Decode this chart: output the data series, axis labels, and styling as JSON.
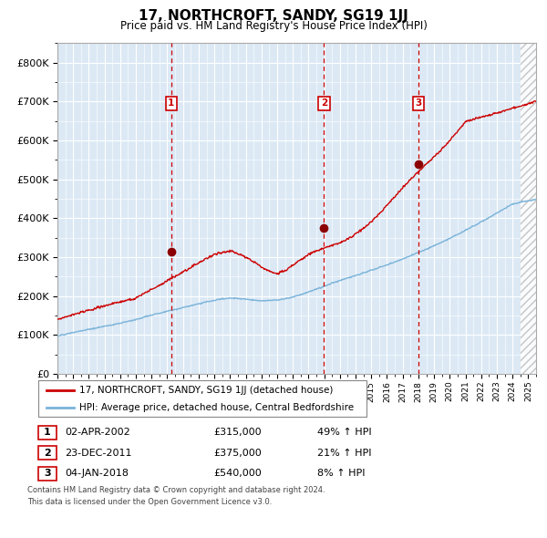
{
  "title": "17, NORTHCROFT, SANDY, SG19 1JJ",
  "subtitle": "Price paid vs. HM Land Registry's House Price Index (HPI)",
  "background_color": "#dce9f5",
  "plot_bg_color": "#dce9f5",
  "hpi_line_color": "#7ab3d9",
  "price_line_color": "#cc0000",
  "marker_color": "#8b0000",
  "vline_color": "#cc0000",
  "ylim": [
    0,
    850000
  ],
  "yticks": [
    0,
    100000,
    200000,
    300000,
    400000,
    500000,
    600000,
    700000,
    800000
  ],
  "ytick_labels": [
    "£0",
    "£100K",
    "£200K",
    "£300K",
    "£400K",
    "£500K",
    "£600K",
    "£700K",
    "£800K"
  ],
  "xstart": 1995.0,
  "xend": 2025.5,
  "legend_label_price": "17, NORTHCROFT, SANDY, SG19 1JJ (detached house)",
  "legend_label_hpi": "HPI: Average price, detached house, Central Bedfordshire",
  "transactions": [
    {
      "num": 1,
      "date": "02-APR-2002",
      "price": 315000,
      "pct": "49%",
      "x": 2002.25
    },
    {
      "num": 2,
      "date": "23-DEC-2011",
      "price": 375000,
      "pct": "21%",
      "x": 2011.98
    },
    {
      "num": 3,
      "date": "04-JAN-2018",
      "price": 540000,
      "pct": "8%",
      "x": 2018.02
    }
  ],
  "footnote1": "Contains HM Land Registry data © Crown copyright and database right 2024.",
  "footnote2": "This data is licensed under the Open Government Licence v3.0."
}
